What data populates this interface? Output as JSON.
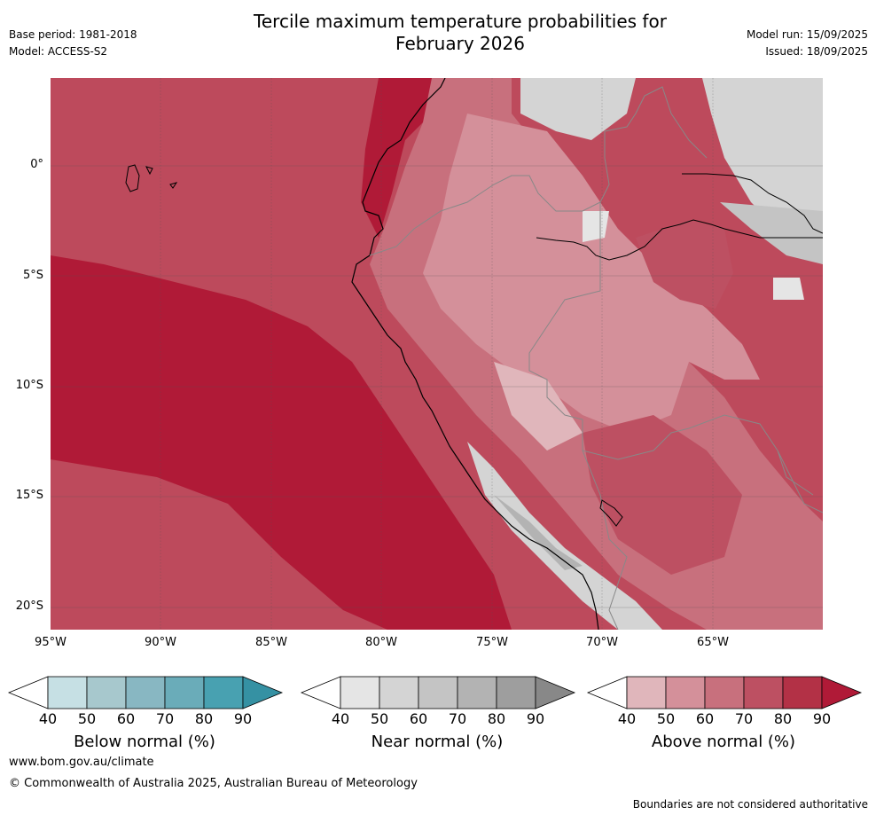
{
  "title": {
    "line1": "Tercile maximum temperature probabilities for",
    "line2": "February 2026"
  },
  "header": {
    "base_period": "Base period: 1981-2018",
    "model": "Model: ACCESS-S2",
    "model_run": "Model run: 15/09/2025",
    "issued": "Issued: 18/09/2025"
  },
  "map": {
    "latitude_labels": [
      "0°",
      "5°S",
      "10°S",
      "15°S",
      "20°S"
    ],
    "longitude_labels": [
      "95°W",
      "90°W",
      "85°W",
      "80°W",
      "75°W",
      "70°W",
      "65°W"
    ]
  },
  "legend": {
    "below": {
      "title": "Below normal (%)",
      "ticks": [
        "40",
        "50",
        "60",
        "70",
        "80",
        "90"
      ],
      "colors": [
        "#ffffff",
        "#c6e0e4",
        "#a7c8cd",
        "#88b7c2",
        "#6aacb9",
        "#48a1b1",
        "#3591a3"
      ]
    },
    "near": {
      "title": "Near normal (%)",
      "ticks": [
        "40",
        "50",
        "60",
        "70",
        "80",
        "90"
      ],
      "colors": [
        "#ffffff",
        "#e5e5e5",
        "#d4d4d4",
        "#c4c4c4",
        "#b3b3b3",
        "#9e9e9e",
        "#888888"
      ]
    },
    "above": {
      "title": "Above normal (%)",
      "ticks": [
        "40",
        "50",
        "60",
        "70",
        "80",
        "90"
      ],
      "colors": [
        "#ffffff",
        "#e0b6bb",
        "#d4909a",
        "#c8707d",
        "#bd5062",
        "#b33146",
        "#b01a37"
      ]
    }
  },
  "footer": {
    "website": "www.bom.gov.au/climate",
    "copyright": "© Commonwealth of Australia 2025, Australian Bureau of Meteorology",
    "disclaimer": "Boundaries are not considered authoritative"
  }
}
